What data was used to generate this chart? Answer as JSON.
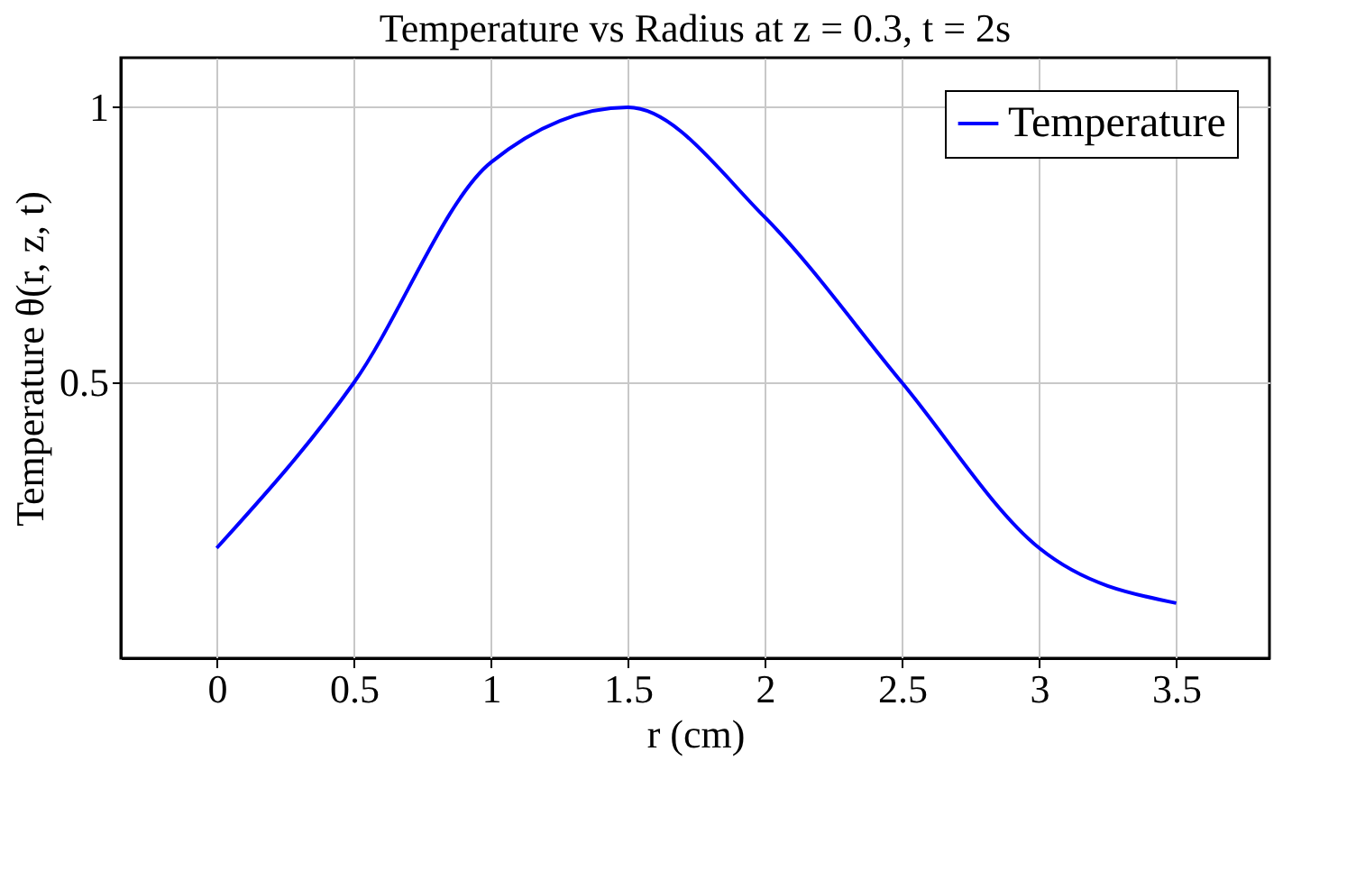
{
  "chart_data": {
    "type": "line",
    "title": "Temperature vs Radius at z = 0.3, t = 2s",
    "xlabel": "r (cm)",
    "ylabel": "Temperature θ(r, z, t)",
    "x": [
      0,
      0.5,
      1,
      1.5,
      2,
      2.5,
      3,
      3.5
    ],
    "series": [
      {
        "name": "Temperature",
        "color": "#0000ff",
        "values": [
          0.2,
          0.5,
          0.9,
          1.0,
          0.8,
          0.5,
          0.2,
          0.1
        ]
      }
    ],
    "xlim": [
      -0.35,
      3.84
    ],
    "xticks": [
      0,
      0.5,
      1,
      1.5,
      2,
      2.5,
      3,
      3.5
    ],
    "ylim": [
      0,
      1.09
    ],
    "yticks": [
      0.5,
      1
    ],
    "grid": true,
    "legend": "top right",
    "marker": "none",
    "line_style": "solid"
  }
}
